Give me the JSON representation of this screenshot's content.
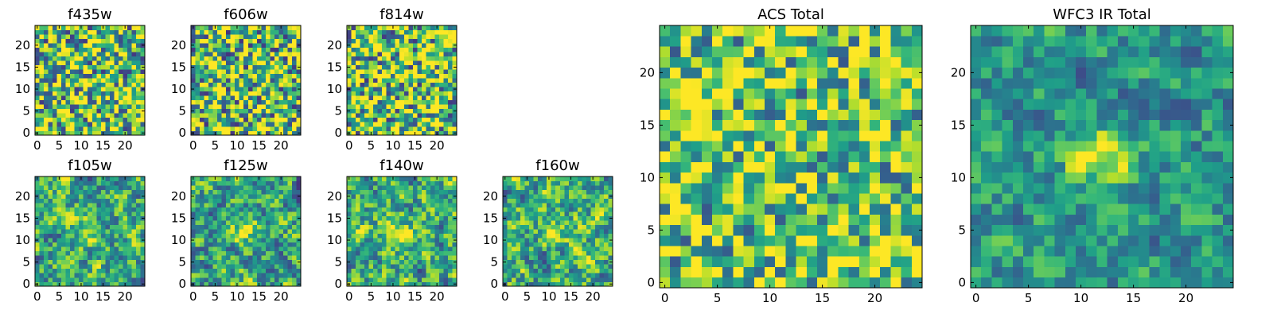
{
  "chart_data": [
    {
      "type": "heatmap",
      "title": "f435w",
      "xticks": [
        "0",
        "5",
        "10",
        "15",
        "20"
      ],
      "yticks": [
        "0",
        "5",
        "10",
        "15",
        "20"
      ],
      "xlim": [
        0,
        25
      ],
      "ylim": [
        0,
        25
      ],
      "grid": false,
      "colormap": "viridis",
      "description_of_values": "pixel noise"
    },
    {
      "type": "heatmap",
      "title": "f606w",
      "xticks": [
        "0",
        "5",
        "10",
        "15",
        "20"
      ],
      "yticks": [
        "0",
        "5",
        "10",
        "15",
        "20"
      ],
      "xlim": [
        0,
        25
      ],
      "ylim": [
        0,
        25
      ],
      "grid": false,
      "colormap": "viridis"
    },
    {
      "type": "heatmap",
      "title": "f814w",
      "xticks": [
        "0",
        "5",
        "10",
        "15",
        "20"
      ],
      "yticks": [
        "0",
        "5",
        "10",
        "15",
        "20"
      ],
      "xlim": [
        0,
        25
      ],
      "ylim": [
        0,
        25
      ],
      "grid": false,
      "colormap": "viridis"
    },
    {
      "type": "heatmap",
      "title": "f105w",
      "xticks": [
        "0",
        "5",
        "10",
        "15",
        "20"
      ],
      "yticks": [
        "0",
        "5",
        "10",
        "15",
        "20"
      ],
      "xlim": [
        0,
        25
      ],
      "ylim": [
        0,
        25
      ],
      "grid": false,
      "colormap": "viridis"
    },
    {
      "type": "heatmap",
      "title": "f125w",
      "xticks": [
        "0",
        "5",
        "10",
        "15",
        "20"
      ],
      "yticks": [
        "0",
        "5",
        "10",
        "15",
        "20"
      ],
      "xlim": [
        0,
        25
      ],
      "ylim": [
        0,
        25
      ],
      "grid": false,
      "colormap": "viridis"
    },
    {
      "type": "heatmap",
      "title": "f140w",
      "xticks": [
        "0",
        "5",
        "10",
        "15",
        "20"
      ],
      "yticks": [
        "0",
        "5",
        "10",
        "15",
        "20"
      ],
      "xlim": [
        0,
        25
      ],
      "ylim": [
        0,
        25
      ],
      "grid": false,
      "colormap": "viridis"
    },
    {
      "type": "heatmap",
      "title": "f160w",
      "xticks": [
        "0",
        "5",
        "10",
        "15",
        "20"
      ],
      "yticks": [
        "0",
        "5",
        "10",
        "15",
        "20"
      ],
      "xlim": [
        0,
        25
      ],
      "ylim": [
        0,
        25
      ],
      "grid": false,
      "colormap": "viridis"
    },
    {
      "type": "heatmap",
      "title": "ACS Total",
      "xticks": [
        "0",
        "5",
        "10",
        "15",
        "20"
      ],
      "yticks": [
        "0",
        "5",
        "10",
        "15",
        "20"
      ],
      "xlim": [
        0,
        25
      ],
      "ylim": [
        0,
        25
      ],
      "grid": false,
      "colormap": "viridis"
    },
    {
      "type": "heatmap",
      "title": "WFC3 IR Total",
      "xticks": [
        "0",
        "5",
        "10",
        "15",
        "20"
      ],
      "yticks": [
        "0",
        "5",
        "10",
        "15",
        "20"
      ],
      "xlim": [
        0,
        25
      ],
      "ylim": [
        0,
        25
      ],
      "grid": false,
      "colormap": "viridis"
    }
  ]
}
